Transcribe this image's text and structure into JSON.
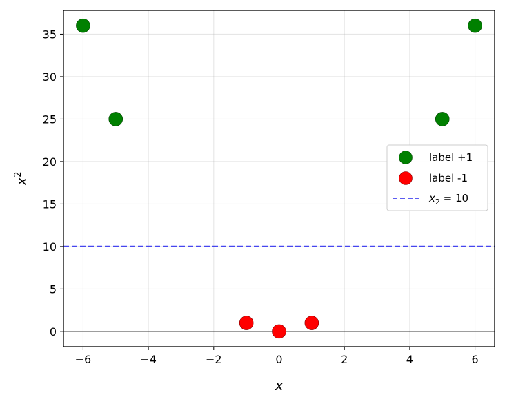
{
  "chart_data": {
    "type": "scatter",
    "title": "",
    "xlabel": "x",
    "ylabel": "x",
    "ylabel_superscript": "2",
    "xlim": [
      -6.6,
      6.6
    ],
    "ylim": [
      -1.8,
      37.8
    ],
    "xticks": [
      -6,
      -4,
      -2,
      0,
      2,
      4,
      6
    ],
    "xtick_labels": [
      "−6",
      "−4",
      "−2",
      "0",
      "2",
      "4",
      "6"
    ],
    "yticks": [
      0,
      5,
      10,
      15,
      20,
      25,
      30,
      35
    ],
    "ytick_labels": [
      "0",
      "5",
      "10",
      "15",
      "20",
      "25",
      "30",
      "35"
    ],
    "grid": true,
    "zero_lines": true,
    "legend_position": "center-right",
    "series": [
      {
        "name": "label +1",
        "kind": "scatter",
        "color": "#008000",
        "points": [
          {
            "x": -6,
            "y": 36
          },
          {
            "x": -5,
            "y": 25
          },
          {
            "x": 5,
            "y": 25
          },
          {
            "x": 6,
            "y": 36
          }
        ]
      },
      {
        "name": "label -1",
        "kind": "scatter",
        "color": "#ff0000",
        "points": [
          {
            "x": -1,
            "y": 1
          },
          {
            "x": 0,
            "y": 0
          },
          {
            "x": 1,
            "y": 1
          }
        ]
      },
      {
        "name_prefix": "x",
        "name_subscript": "2",
        "name_suffix": " = 10",
        "kind": "hline",
        "color": "#3333ee",
        "dashed": true,
        "y": 10
      }
    ]
  }
}
